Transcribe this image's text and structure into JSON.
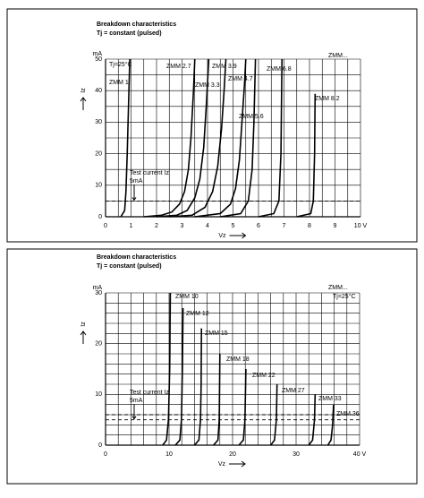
{
  "chart_data": [
    {
      "type": "line",
      "title": "Breakdown characteristics",
      "subtitle": "Tj = constant (pulsed)",
      "y_unit": "mA",
      "ylabel": "Iz",
      "xlabel": "Vz",
      "annotation": "Tj=25°C",
      "family": "ZMM...",
      "test_current_label": [
        "Test current Iz",
        "5mA"
      ],
      "reference_lines": [
        5
      ],
      "xlim": [
        0,
        10
      ],
      "ylim": [
        0,
        50
      ],
      "xticks": [
        0,
        1,
        2,
        3,
        4,
        5,
        6,
        7,
        8,
        9,
        {
          "value": 10,
          "label": "10 V"
        }
      ],
      "yticks": [
        0,
        10,
        20,
        30,
        40,
        50
      ],
      "grid": true,
      "minor_grid": {
        "x": 2,
        "y": 2
      },
      "color": "#000000",
      "series": [
        {
          "name": "ZMM 1",
          "x": [
            0.6,
            0.75,
            0.8,
            0.85,
            0.9,
            0.95
          ],
          "values": [
            0,
            2,
            8,
            20,
            35,
            50
          ]
        },
        {
          "name": "ZMM 2.7",
          "x": [
            1.5,
            2.2,
            2.6,
            2.9,
            3.1,
            3.25,
            3.35,
            3.45,
            3.5
          ],
          "values": [
            0,
            0.5,
            1.5,
            4,
            8,
            15,
            25,
            40,
            50
          ]
        },
        {
          "name": "ZMM 3.3",
          "x": [
            2,
            2.8,
            3.2,
            3.5,
            3.7,
            3.85,
            3.95,
            4.05
          ],
          "values": [
            0,
            0.5,
            2,
            6,
            12,
            22,
            35,
            50
          ]
        },
        {
          "name": "ZMM 3.9",
          "x": [
            2.5,
            3.4,
            3.9,
            4.2,
            4.4,
            4.55,
            4.65,
            4.72
          ],
          "values": [
            0,
            0.5,
            3,
            8,
            16,
            28,
            40,
            50
          ]
        },
        {
          "name": "ZMM 4.7",
          "x": [
            3.5,
            4.5,
            4.9,
            5.1,
            5.25,
            5.35,
            5.45,
            5.5
          ],
          "values": [
            0,
            1,
            4,
            9,
            18,
            30,
            42,
            50
          ]
        },
        {
          "name": "ZMM 5.6",
          "x": [
            4.5,
            5.3,
            5.6,
            5.75,
            5.82,
            5.88
          ],
          "values": [
            0,
            1,
            5,
            15,
            30,
            50
          ]
        },
        {
          "name": "ZMM 6.8",
          "x": [
            6,
            6.6,
            6.8,
            6.88,
            6.92
          ],
          "values": [
            0,
            1,
            5,
            20,
            50
          ]
        },
        {
          "name": "ZMM 8.2",
          "x": [
            7.5,
            8.05,
            8.15,
            8.2,
            8.22
          ],
          "values": [
            0,
            1,
            5,
            20,
            39
          ]
        }
      ]
    },
    {
      "type": "line",
      "title": "Breakdown characteristics",
      "subtitle": "Tj = constant (pulsed)",
      "y_unit": "mA",
      "ylabel": "Iz",
      "xlabel": "Vz",
      "annotation": "Tj=25°C",
      "family": "ZMM...",
      "test_current_label": [
        "Test current Iz",
        "5mA"
      ],
      "reference_lines": [
        5,
        6
      ],
      "xlim": [
        0,
        40
      ],
      "ylim": [
        0,
        30
      ],
      "xticks": [
        0,
        10,
        20,
        30,
        {
          "value": 40,
          "label": "40 V"
        }
      ],
      "yticks": [
        0,
        10,
        20,
        30
      ],
      "grid": true,
      "minor_grid": {
        "x": 5,
        "y": 5
      },
      "color": "#000000",
      "series": [
        {
          "name": "ZMM 10",
          "x": [
            9,
            9.6,
            9.9,
            10.1,
            10.2
          ],
          "values": [
            0,
            1,
            5,
            15,
            30
          ]
        },
        {
          "name": "ZMM 12",
          "x": [
            11,
            11.7,
            11.95,
            12.1,
            12.2
          ],
          "values": [
            0,
            1,
            5,
            15,
            27
          ]
        },
        {
          "name": "ZMM 15",
          "x": [
            14,
            14.7,
            14.95,
            15.05,
            15.1
          ],
          "values": [
            0,
            1,
            5,
            12,
            23
          ]
        },
        {
          "name": "ZMM 18",
          "x": [
            17,
            17.7,
            17.9,
            18.0
          ],
          "values": [
            0,
            1,
            5,
            18
          ]
        },
        {
          "name": "ZMM 22",
          "x": [
            21,
            21.7,
            21.95,
            22.1
          ],
          "values": [
            0,
            1,
            5,
            15
          ]
        },
        {
          "name": "ZMM 27",
          "x": [
            26,
            26.6,
            26.9,
            27.0
          ],
          "values": [
            0,
            1,
            5,
            12
          ]
        },
        {
          "name": "ZMM 33",
          "x": [
            32,
            32.6,
            32.9,
            33.0
          ],
          "values": [
            0,
            1,
            5,
            10
          ]
        },
        {
          "name": "ZMM 36",
          "x": [
            35,
            35.5,
            35.75,
            35.9
          ],
          "values": [
            0,
            1,
            4,
            8
          ]
        }
      ]
    }
  ]
}
